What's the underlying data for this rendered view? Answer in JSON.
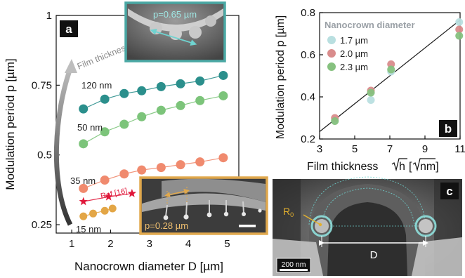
{
  "colors": {
    "teal": "#2b8f8c",
    "green": "#7cc47a",
    "salmon": "#f08a6e",
    "gold": "#e3a646",
    "ref_red": "#e0173a",
    "light_teal": "#b9dfe0",
    "panel_b_green": "#86c17f",
    "panel_b_pink": "#d98c8c",
    "inset_border_teal": "#4aa8a4",
    "inset_border_gold": "#e0a84d",
    "fit_line": "#1a1a1a",
    "label_box": "#111111"
  },
  "chart_data": [
    {
      "panel": "a",
      "type": "line",
      "xlabel": "Nanocrown diameter D [µm]",
      "ylabel": "Modulation period p [µm]",
      "xlim": [
        0.6,
        5.3
      ],
      "ylim": [
        0.22,
        1.0
      ],
      "xticks": [
        "1",
        "2",
        "3",
        "4",
        "5"
      ],
      "yticks": [
        "0.25",
        "0.5",
        "0.75",
        "1"
      ],
      "ytick_values": [
        0.25,
        0.5,
        0.75,
        1.0
      ],
      "arrow_label": "Film thickness",
      "series": [
        {
          "name": "120 nm",
          "color": "teal",
          "x": [
            1.3,
            1.85,
            2.35,
            2.8,
            3.3,
            3.8,
            4.3,
            4.9
          ],
          "y": [
            0.665,
            0.7,
            0.72,
            0.73,
            0.745,
            0.755,
            0.765,
            0.785
          ]
        },
        {
          "name": "50 nm",
          "color": "green",
          "x": [
            1.3,
            1.85,
            2.35,
            2.8,
            3.3,
            3.8,
            4.3,
            4.9
          ],
          "y": [
            0.54,
            0.583,
            0.61,
            0.637,
            0.66,
            0.677,
            0.695,
            0.712
          ]
        },
        {
          "name": "35 nm",
          "color": "salmon",
          "x": [
            1.3,
            1.85,
            2.35,
            2.8,
            3.3,
            3.8,
            4.3,
            4.9
          ],
          "y": [
            0.38,
            0.41,
            0.432,
            0.446,
            0.455,
            0.465,
            0.475,
            0.49
          ]
        },
        {
          "name": "15 nm",
          "color": "gold",
          "x": [
            1.3,
            1.55,
            1.85,
            2.05
          ],
          "y": [
            0.28,
            0.29,
            0.3,
            0.308
          ]
        },
        {
          "name": "Ref.[16]",
          "color": "ref_red",
          "marker": "star",
          "x": [
            1.3,
            1.95,
            2.55
          ],
          "y": [
            0.333,
            0.35,
            0.362
          ]
        }
      ],
      "inset_top": {
        "label": "p=0.65 µm"
      },
      "inset_bottom": {
        "label": "p=0.28 µm"
      }
    },
    {
      "panel": "b",
      "type": "scatter",
      "xlabel_main": "Film thickness ",
      "xlabel_unit": "[",
      "xlabel_unit_end": "nm]",
      "xlabel_sqrt_var": "h",
      "xlabel_sqrt_unit": "nm",
      "ylabel": "Modulation period p [µm]",
      "xlim": [
        3,
        11
      ],
      "ylim": [
        0.2,
        0.8
      ],
      "xticks": [
        "3",
        "5",
        "7",
        "9",
        "11"
      ],
      "yticks": [
        "0.2",
        "0.4",
        "0.6",
        "0.8"
      ],
      "legend_title": "Nanocrown diameter",
      "legend_position": "top-left",
      "series": [
        {
          "name": "1.7 µm",
          "color": "light_teal",
          "x": [
            3.87,
            5.92,
            7.07,
            10.95
          ],
          "y": [
            0.29,
            0.385,
            0.52,
            0.755
          ]
        },
        {
          "name": "2.0 µm",
          "color": "panel_b_pink",
          "x": [
            3.87,
            5.92,
            7.07,
            10.95
          ],
          "y": [
            0.3,
            0.43,
            0.555,
            0.72
          ]
        },
        {
          "name": "2.3 µm",
          "color": "panel_b_green",
          "x": [
            3.87,
            5.92,
            7.07,
            10.95
          ],
          "y": [
            0.285,
            0.42,
            0.53,
            0.69
          ]
        }
      ],
      "fit_line": {
        "x": [
          3,
          11
        ],
        "y": [
          0.235,
          0.765
        ]
      }
    },
    {
      "panel": "c",
      "type": "image",
      "labels": {
        "radius": "R",
        "radius_sub": "0",
        "diameter": "D",
        "scalebar": "200 nm"
      }
    }
  ],
  "panel_labels": {
    "a": "a",
    "b": "b",
    "c": "c"
  }
}
